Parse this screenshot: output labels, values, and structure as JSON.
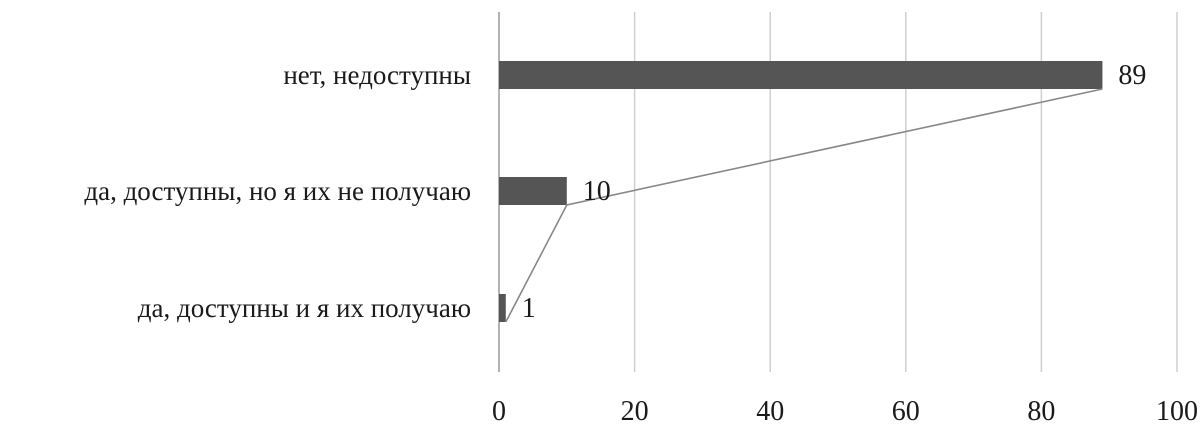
{
  "chart_data": {
    "type": "bar",
    "orientation": "horizontal",
    "categories": [
      "нет, недоступны",
      "да, доступны, но я их не получаю",
      "да, доступны и я их получаю"
    ],
    "values": [
      89,
      10,
      1
    ],
    "data_labels": [
      "89",
      "10",
      "1"
    ],
    "xlim": [
      0,
      100
    ],
    "x_ticks": [
      0,
      20,
      40,
      60,
      80,
      100
    ],
    "x_tick_labels": [
      "0",
      "20",
      "40",
      "60",
      "80",
      "100"
    ],
    "grid": true,
    "legend": "none",
    "bar_color": "#555555",
    "connector_line": true
  }
}
